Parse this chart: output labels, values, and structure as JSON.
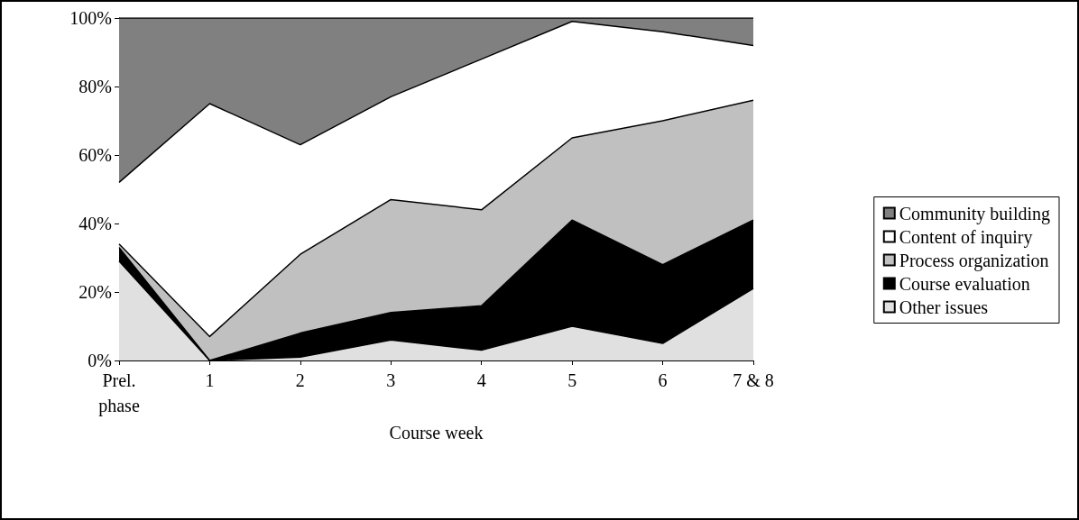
{
  "chart_data": {
    "type": "area",
    "stacked": true,
    "xlabel": "Course week",
    "categories": [
      "Prel.\nphase",
      "1",
      "2",
      "3",
      "4",
      "5",
      "6",
      "7 & 8"
    ],
    "series": [
      {
        "name": "Other issues",
        "color": "#e0e0e0",
        "values": [
          29,
          0,
          1,
          6,
          3,
          10,
          5,
          21
        ]
      },
      {
        "name": "Course evaluation",
        "color": "#000000",
        "values": [
          4,
          0,
          7,
          8,
          13,
          31,
          23,
          20
        ]
      },
      {
        "name": "Process organization",
        "color": "#c0c0c0",
        "values": [
          1,
          7,
          23,
          33,
          28,
          24,
          42,
          35
        ]
      },
      {
        "name": "Content of inquiry",
        "color": "#ffffff",
        "values": [
          18,
          68,
          32,
          30,
          44,
          34,
          26,
          16
        ]
      },
      {
        "name": "Community building",
        "color": "#808080",
        "values": [
          48,
          25,
          37,
          23,
          12,
          1,
          4,
          8
        ]
      }
    ],
    "ylim": [
      0,
      100
    ],
    "yticks": [
      {
        "value": 0,
        "label": "0%"
      },
      {
        "value": 20,
        "label": "20%"
      },
      {
        "value": 40,
        "label": "40%"
      },
      {
        "value": 60,
        "label": "60%"
      },
      {
        "value": 80,
        "label": "80%"
      },
      {
        "value": 100,
        "label": "100%"
      }
    ],
    "grid": false,
    "legend": "right",
    "marker": "none"
  }
}
